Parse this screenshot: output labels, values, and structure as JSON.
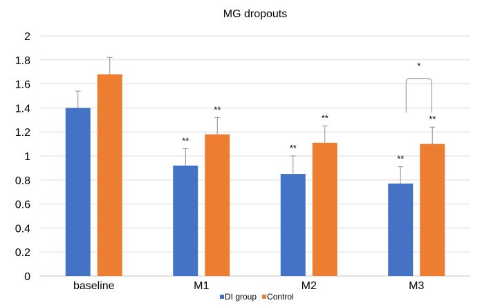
{
  "chart_data": {
    "type": "bar",
    "title": "MG dropouts",
    "xlabel": "",
    "ylabel": "",
    "categories": [
      "baseline",
      "M1",
      "M2",
      "M3"
    ],
    "ylim": [
      0,
      2
    ],
    "yticks": [
      "0",
      "0.2",
      "0.4",
      "0.6",
      "0.8",
      "1",
      "1.2",
      "1.4",
      "1.6",
      "1.8",
      "2"
    ],
    "grid": true,
    "legend_position": "bottom",
    "series": [
      {
        "name": "DI group",
        "color": "#4472C4",
        "values": [
          1.4,
          0.92,
          0.85,
          0.77
        ],
        "error": [
          0.14,
          0.14,
          0.15,
          0.14
        ],
        "annotations": [
          "",
          "**",
          "**",
          "**"
        ]
      },
      {
        "name": "Control",
        "color": "#ED7D31",
        "values": [
          1.68,
          1.18,
          1.11,
          1.1
        ],
        "error": [
          0.14,
          0.14,
          0.14,
          0.14
        ],
        "annotations": [
          "",
          "**",
          "**",
          "**"
        ]
      }
    ],
    "significance": [
      {
        "category": "M3",
        "label": "*"
      }
    ]
  }
}
